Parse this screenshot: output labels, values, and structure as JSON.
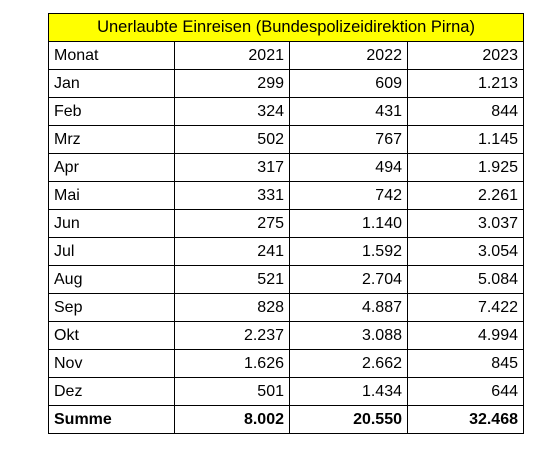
{
  "title": "Unerlaubte Einreisen (Bundespolizeidirektion Pirna)",
  "header": {
    "month_label": "Monat",
    "years": [
      "2021",
      "2022",
      "2023"
    ]
  },
  "rows": [
    {
      "month": "Jan",
      "values": [
        "299",
        "609",
        "1.213"
      ]
    },
    {
      "month": "Feb",
      "values": [
        "324",
        "431",
        "844"
      ]
    },
    {
      "month": "Mrz",
      "values": [
        "502",
        "767",
        "1.145"
      ]
    },
    {
      "month": "Apr",
      "values": [
        "317",
        "494",
        "1.925"
      ]
    },
    {
      "month": "Mai",
      "values": [
        "331",
        "742",
        "2.261"
      ]
    },
    {
      "month": "Jun",
      "values": [
        "275",
        "1.140",
        "3.037"
      ]
    },
    {
      "month": "Jul",
      "values": [
        "241",
        "1.592",
        "3.054"
      ]
    },
    {
      "month": "Aug",
      "values": [
        "521",
        "2.704",
        "5.084"
      ]
    },
    {
      "month": "Sep",
      "values": [
        "828",
        "4.887",
        "7.422"
      ]
    },
    {
      "month": "Okt",
      "values": [
        "2.237",
        "3.088",
        "4.994"
      ]
    },
    {
      "month": "Nov",
      "values": [
        "1.626",
        "2.662",
        "845"
      ]
    },
    {
      "month": "Dez",
      "values": [
        "501",
        "1.434",
        "644"
      ]
    }
  ],
  "total": {
    "label": "Summe",
    "values": [
      "8.002",
      "20.550",
      "32.468"
    ]
  },
  "colors": {
    "title_background": "#ffff00",
    "border": "#000000"
  }
}
